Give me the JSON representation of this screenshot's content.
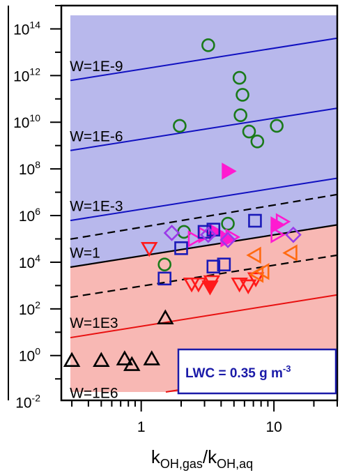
{
  "chart_data": {
    "type": "scatter",
    "title": "",
    "xlabel": {
      "base": "k",
      "sub1": "OH,gas",
      "mid": "/k",
      "sub2": "OH,aq"
    },
    "ylabel": "",
    "x_scale": "log",
    "y_scale": "log",
    "xlim": [
      0.25,
      30
    ],
    "ylim": [
      0.012,
      1000000000000000
    ],
    "x_ticks": [
      {
        "value": 1,
        "label": "1"
      },
      {
        "value": 10,
        "label": "10"
      }
    ],
    "y_ticks": [
      {
        "value": 0.01,
        "base": "10",
        "exp": "-2"
      },
      {
        "value": 1,
        "base": "10",
        "exp": "0"
      },
      {
        "value": 100,
        "base": "10",
        "exp": "2"
      },
      {
        "value": 10000,
        "base": "10",
        "exp": "4"
      },
      {
        "value": 1000000,
        "base": "10",
        "exp": "6"
      },
      {
        "value": 100000000,
        "base": "10",
        "exp": "8"
      },
      {
        "value": 10000000000,
        "base": "10",
        "exp": "10"
      },
      {
        "value": 1000000000000,
        "base": "10",
        "exp": "12"
      },
      {
        "value": 100000000000000,
        "base": "10",
        "exp": "14"
      }
    ],
    "regions": [
      {
        "name": "blue",
        "from_line": "W=1",
        "to": "top",
        "color": "#b8b8ec"
      },
      {
        "name": "red",
        "from_line": "W=1",
        "to": "bottom",
        "color": "#f8b8b4"
      }
    ],
    "lines": [
      {
        "label": "W=1E-9",
        "x": [
          0.3,
          30
        ],
        "y": [
          630000000000,
          40000000000000
        ],
        "color": "#1010c0",
        "style": "solid",
        "label_x": 0.3,
        "label_y": 2500000000000
      },
      {
        "label": "W=1E-6",
        "x": [
          0.3,
          30
        ],
        "y": [
          630000000,
          40000000000
        ],
        "color": "#1010c0",
        "style": "solid",
        "label_x": 0.3,
        "label_y": 2500000000
      },
      {
        "label": "W=1E-3",
        "x": [
          0.3,
          30
        ],
        "y": [
          630000,
          40000000
        ],
        "color": "#1010c0",
        "style": "solid",
        "label_x": 0.3,
        "label_y": 2500000
      },
      {
        "label": "",
        "x": [
          0.3,
          30
        ],
        "y": [
          100000,
          8000000
        ],
        "color": "#000000",
        "style": "dashed"
      },
      {
        "label": "W=1",
        "x": [
          0.3,
          30
        ],
        "y": [
          6300,
          400000
        ],
        "color": "#000000",
        "style": "solid",
        "label_x": 0.3,
        "label_y": 25000
      },
      {
        "label": "",
        "x": [
          0.3,
          30
        ],
        "y": [
          320,
          20000
        ],
        "color": "#000000",
        "style": "dashed"
      },
      {
        "label": "W=1E3",
        "x": [
          0.3,
          30
        ],
        "y": [
          6,
          400
        ],
        "color": "#e81010",
        "style": "solid",
        "label_x": 0.3,
        "label_y": 25
      },
      {
        "label": "W=1E6",
        "x": [
          0.3,
          30
        ],
        "y": [
          0.0063,
          0.4
        ],
        "color": "#e81010",
        "style": "solid",
        "label_x": 0.3,
        "label_y": 0.025
      }
    ],
    "annotation": {
      "text": "LWC = 0.35 g m",
      "sup": "-3"
    },
    "series": [
      {
        "marker": "circle-open",
        "color": "#1a7a1a",
        "points": [
          [
            3.2,
            20000000000000
          ],
          [
            5.5,
            800000000000
          ],
          [
            5.8,
            150000000000
          ],
          [
            5.6,
            20000000000
          ],
          [
            6.5,
            4000000000
          ],
          [
            7.5,
            1500000000
          ],
          [
            10.5,
            7000000000
          ],
          [
            1.95,
            7000000000
          ],
          [
            2.1,
            200000
          ],
          [
            4.5,
            450000
          ],
          [
            1.5,
            8000
          ]
        ]
      },
      {
        "marker": "triangle-right-filled",
        "color": "#ff1ad0",
        "points": [
          [
            4.5,
            80000000
          ],
          [
            10.5,
            400000
          ],
          [
            3.6,
            200000
          ],
          [
            4.4,
            100000
          ]
        ]
      },
      {
        "marker": "triangle-right-open",
        "color": "#ff1ad0",
        "points": [
          [
            11.5,
            550000
          ],
          [
            10.5,
            150000
          ],
          [
            3,
            150000
          ],
          [
            2.5,
            100000
          ],
          [
            4.8,
            120000
          ]
        ]
      },
      {
        "marker": "square-open",
        "color": "#1a1ab8",
        "points": [
          [
            7.2,
            600000
          ],
          [
            3.5,
            250000
          ],
          [
            3,
            200000
          ],
          [
            2,
            40000
          ],
          [
            3.5,
            6500
          ],
          [
            4.2,
            8000
          ],
          [
            1.5,
            2000
          ]
        ]
      },
      {
        "marker": "diamond-open",
        "color": "#9a3ae8",
        "points": [
          [
            1.7,
            180000
          ],
          [
            3.2,
            150000
          ],
          [
            4.5,
            90000
          ],
          [
            14,
            150000
          ]
        ]
      },
      {
        "marker": "triangle-down-open",
        "color": "#ff1a1a",
        "points": [
          [
            1.15,
            40000
          ],
          [
            2.4,
            1200
          ],
          [
            2.7,
            1200
          ],
          [
            3.4,
            1500
          ],
          [
            5.5,
            1200
          ],
          [
            6.4,
            1000
          ],
          [
            7.3,
            2000
          ]
        ]
      },
      {
        "marker": "triangle-down-filled",
        "color": "#ff1a1a",
        "points": [
          [
            3.3,
            900
          ]
        ]
      },
      {
        "marker": "triangle-left-open",
        "color": "#ff6a10",
        "points": [
          [
            7.2,
            20000
          ],
          [
            7.5,
            3000
          ],
          [
            8.3,
            4000
          ],
          [
            13.5,
            25000
          ]
        ]
      },
      {
        "marker": "triangle-up-open",
        "color": "#000000",
        "points": [
          [
            1.52,
            40
          ],
          [
            0.3,
            0.6
          ],
          [
            0.5,
            0.6
          ],
          [
            0.75,
            0.7
          ],
          [
            0.85,
            0.4
          ],
          [
            1.2,
            0.7
          ]
        ]
      }
    ]
  }
}
